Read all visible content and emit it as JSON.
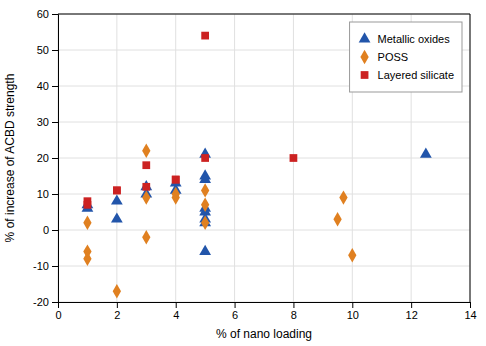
{
  "chart_data": {
    "type": "scatter",
    "xlabel": "% of nano loading",
    "ylabel": "% of increase of ACBD strength",
    "series": [
      {
        "name": "Metallic oxides",
        "color": "#2255AA",
        "marker": "triangle",
        "x": [
          1,
          1,
          2,
          2,
          3,
          3,
          4,
          4,
          5,
          5,
          5,
          5,
          5,
          5,
          5,
          5,
          12.5
        ],
        "values": [
          6,
          7,
          8,
          3,
          12,
          10,
          11,
          13,
          21,
          15,
          14,
          6,
          5,
          3,
          2,
          -6,
          21
        ]
      },
      {
        "name": "POSS",
        "color": "#E08020",
        "marker": "diamond",
        "x": [
          1,
          1,
          1,
          2,
          3,
          3,
          3,
          4,
          4,
          5,
          5,
          5,
          9.5,
          9.7,
          10
        ],
        "values": [
          2,
          -6,
          -8,
          -17,
          22,
          9,
          -2,
          9,
          10,
          11,
          7,
          2,
          3,
          9,
          -7
        ]
      },
      {
        "name": "Layered silicate",
        "color": "#CC2222",
        "marker": "square",
        "x": [
          1,
          1,
          2,
          2,
          3,
          3,
          4,
          4,
          5,
          5,
          8
        ],
        "values": [
          8,
          7,
          11,
          11,
          18,
          12,
          14,
          14,
          54,
          20,
          20
        ]
      }
    ],
    "xlim": [
      0,
      14
    ],
    "ylim": [
      -20,
      60
    ],
    "xticks": [
      0,
      2,
      4,
      6,
      8,
      10,
      12,
      14
    ],
    "yticks": [
      -20,
      -10,
      0,
      10,
      20,
      30,
      40,
      50,
      60
    ],
    "grid": true,
    "legend": "upper right"
  }
}
